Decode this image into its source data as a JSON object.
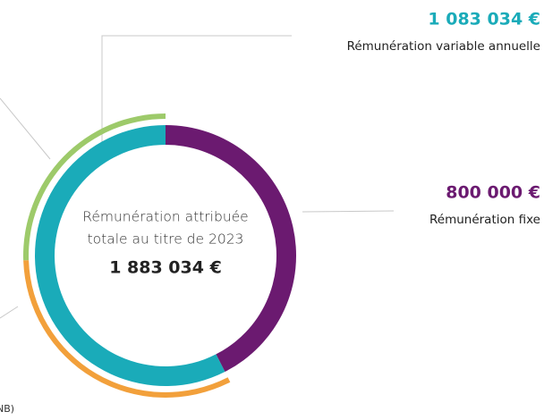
{
  "chart_data": {
    "type": "pie",
    "donut": true,
    "center_text": [
      "Rémunération attribuée",
      "totale au titre de 2023"
    ],
    "total": {
      "value": 1883034,
      "label": "1 883 034 €"
    },
    "categories": [
      "Rémunération fixe",
      "Rémunération variable annuelle"
    ],
    "values": [
      800000,
      1083034
    ],
    "value_labels": [
      "800 000 €",
      "1 083 034 €"
    ],
    "colors": [
      "#6b1a70",
      "#1aabb9"
    ],
    "outer": {
      "values": [
        481000,
        602000
      ],
      "colors": [
        "#9dca6a",
        "#f2a03b"
      ]
    },
    "annotations": [
      "NB)"
    ]
  }
}
